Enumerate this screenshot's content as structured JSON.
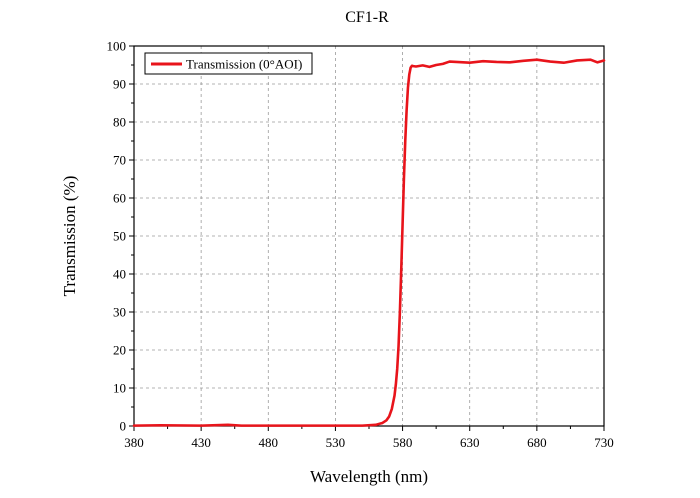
{
  "chart_data": {
    "type": "line",
    "title": "CF1-R",
    "xlabel": "Wavelength (nm)",
    "ylabel": "Transmission (%)",
    "xlim": [
      380,
      730
    ],
    "ylim": [
      0,
      100
    ],
    "xticks": [
      380,
      430,
      480,
      530,
      580,
      630,
      680,
      730
    ],
    "yticks": [
      0,
      10,
      20,
      30,
      40,
      50,
      60,
      70,
      80,
      90,
      100
    ],
    "grid": true,
    "legend_position": "top-left",
    "series": [
      {
        "name": "Transmission (0°AOI)",
        "color": "#e8141b",
        "x": [
          380,
          400,
          430,
          450,
          460,
          470,
          480,
          500,
          530,
          550,
          560,
          565,
          568,
          570,
          572,
          574,
          575,
          576,
          577,
          578,
          579,
          580,
          581,
          582,
          583,
          584,
          585,
          586,
          587,
          588,
          590,
          595,
          600,
          605,
          610,
          615,
          620,
          630,
          640,
          650,
          660,
          670,
          680,
          690,
          700,
          710,
          720,
          725,
          730
        ],
        "y": [
          0.1,
          0.2,
          0.1,
          0.3,
          0.1,
          0.1,
          0.1,
          0.1,
          0.1,
          0.1,
          0.3,
          0.8,
          1.5,
          2.5,
          4.5,
          8,
          11,
          15,
          21,
          30,
          41,
          53,
          65,
          75,
          83,
          89,
          92.5,
          94.3,
          94.8,
          94.7,
          94.6,
          94.9,
          94.5,
          95.0,
          95.3,
          95.9,
          95.8,
          95.6,
          96.0,
          95.8,
          95.7,
          96.1,
          96.4,
          95.9,
          95.6,
          96.2,
          96.4,
          95.7,
          96.2
        ]
      }
    ]
  }
}
